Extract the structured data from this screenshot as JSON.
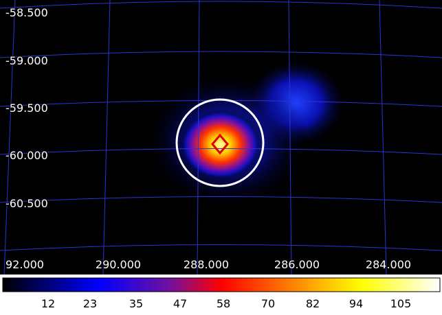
{
  "dec_labels": [
    "-58.500",
    "-59.000",
    "-59.500",
    "-60.000",
    "-60.500"
  ],
  "ra_labels": [
    "92.000",
    "290.000",
    "288.000",
    "286.000",
    "284.000"
  ],
  "colorbar_labels": [
    "12",
    "23",
    "35",
    "47",
    "58",
    "70",
    "82",
    "94",
    "105"
  ]
}
